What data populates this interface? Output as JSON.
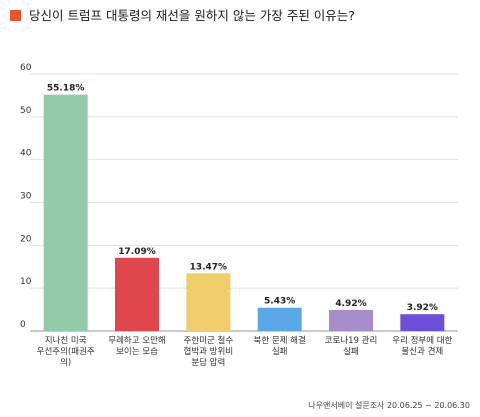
{
  "title": "당신이 트럼프 대통령의 재선을 원하지 않는 가장 주된 이유는?",
  "accent_color": "#e8562a",
  "source": "나우앤서베이 설문조사 20.06.25 ~ 20.06.30",
  "chart_data": {
    "type": "bar",
    "title": "당신이 트럼프 대통령의 재선을 원하지 않는 가장 주된 이유는?",
    "categories": [
      [
        "지나친 미국",
        "우선주의(패권주",
        "의)"
      ],
      [
        "무례하고 오만해",
        "보이는 모습"
      ],
      [
        "주한미군 철수",
        "협박과 방위비",
        "분담 압력"
      ],
      [
        "북한 문제 해결",
        "실패"
      ],
      [
        "코로나19 관리",
        "실패"
      ],
      [
        "우리 정부에 대한",
        "불신과 견제"
      ]
    ],
    "values": [
      55.18,
      17.09,
      13.47,
      5.43,
      4.92,
      3.92
    ],
    "value_labels": [
      "55.18%",
      "17.09%",
      "13.47%",
      "5.43%",
      "4.92%",
      "3.92%"
    ],
    "colors": [
      "#93cba9",
      "#e0474c",
      "#f2cd6b",
      "#5aa9e6",
      "#a68ecb",
      "#6b4fd8"
    ],
    "yticks": [
      0,
      10,
      20,
      30,
      40,
      50,
      60
    ],
    "ylim": [
      0,
      60
    ],
    "grid": true,
    "xlabel": "",
    "ylabel": ""
  }
}
